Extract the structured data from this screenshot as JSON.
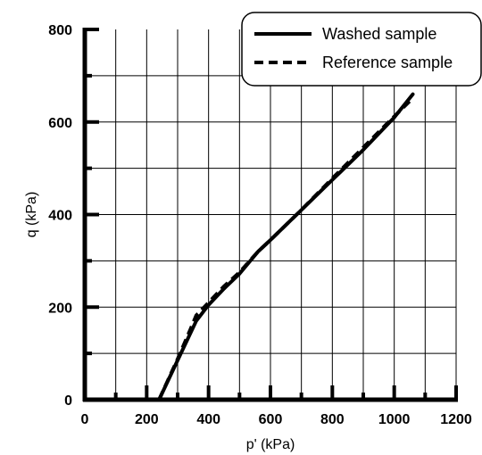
{
  "chart_data": {
    "type": "line",
    "xlabel": "p' (kPa)",
    "ylabel": "q (kPa)",
    "xlim": [
      0,
      1200
    ],
    "ylim": [
      0,
      800
    ],
    "x_ticks": [
      0,
      200,
      400,
      600,
      800,
      1000,
      1200
    ],
    "y_ticks": [
      0,
      200,
      400,
      600,
      800
    ],
    "x_tick_labels": [
      "0",
      "200",
      "400",
      "600",
      "800",
      "1000",
      "1200"
    ],
    "y_tick_labels": [
      "0",
      "200",
      "400",
      "600",
      "800"
    ],
    "grid": true,
    "legend_position": "top-right",
    "series": [
      {
        "name": "Washed sample",
        "style": "solid",
        "color": "#000000",
        "points": [
          [
            240,
            0
          ],
          [
            300,
            85
          ],
          [
            360,
            170
          ],
          [
            400,
            205
          ],
          [
            450,
            240
          ],
          [
            500,
            272
          ],
          [
            560,
            320
          ],
          [
            600,
            345
          ],
          [
            700,
            410
          ],
          [
            800,
            475
          ],
          [
            900,
            540
          ],
          [
            1000,
            610
          ],
          [
            1060,
            660
          ]
        ]
      },
      {
        "name": "Reference sample",
        "style": "dashed",
        "color": "#000000",
        "points": [
          [
            240,
            0
          ],
          [
            300,
            88
          ],
          [
            340,
            150
          ],
          [
            360,
            182
          ],
          [
            400,
            210
          ],
          [
            450,
            245
          ],
          [
            500,
            275
          ],
          [
            560,
            320
          ],
          [
            600,
            345
          ],
          [
            700,
            410
          ],
          [
            800,
            478
          ],
          [
            900,
            545
          ],
          [
            1000,
            612
          ],
          [
            1050,
            645
          ]
        ]
      }
    ]
  }
}
